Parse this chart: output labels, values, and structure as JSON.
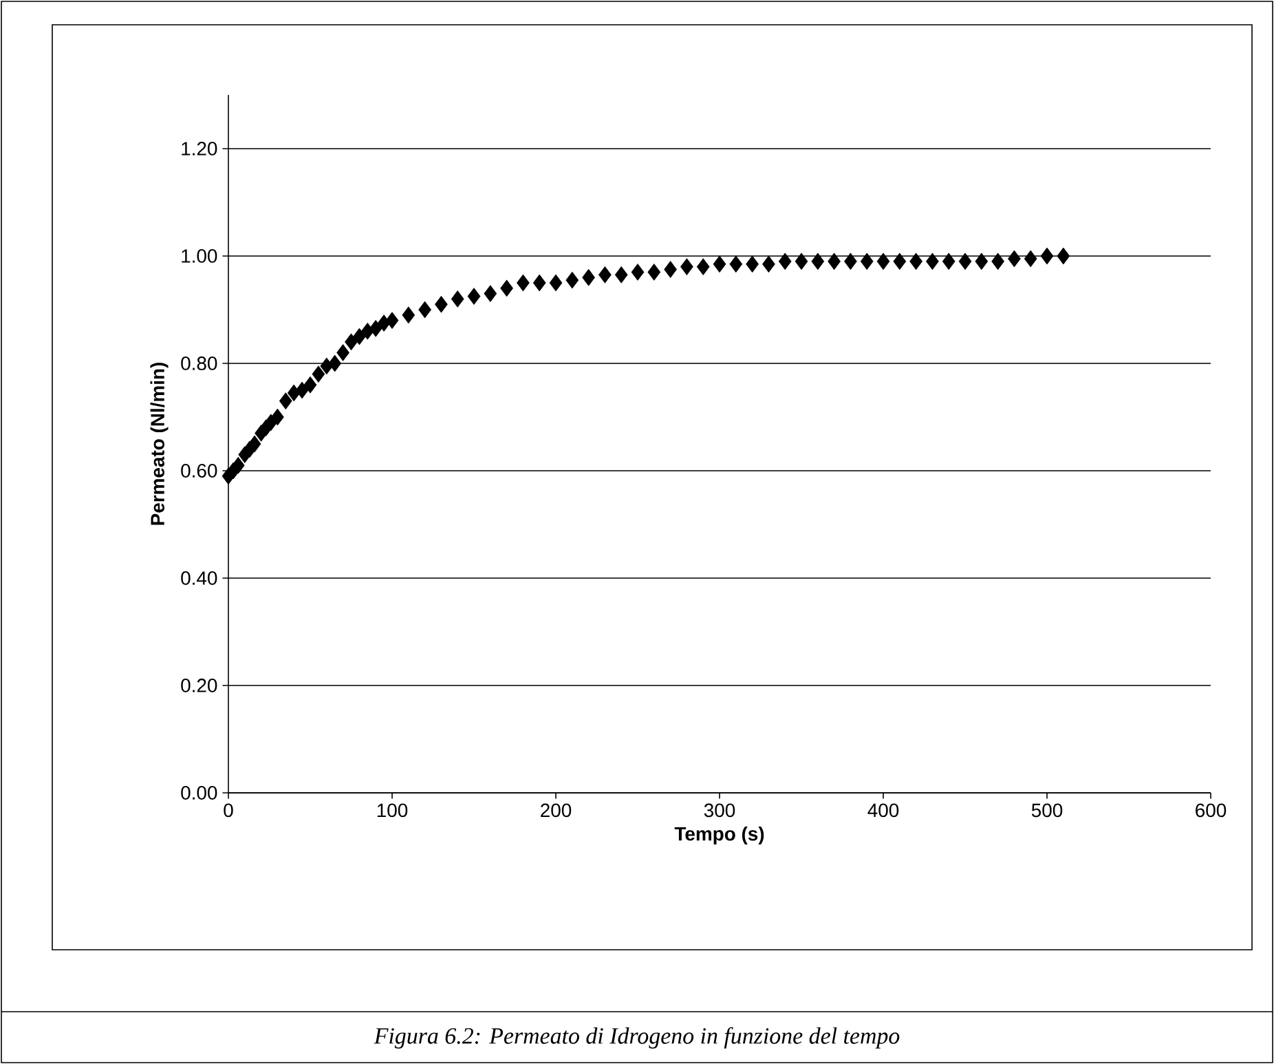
{
  "chart_data": {
    "type": "scatter",
    "xlabel": "Tempo (s)",
    "ylabel": "Permeato (Nl/min)",
    "annotations": [
      "Figura 6.2: Permeato di Idrogeno in funzione del tempo"
    ],
    "x": [
      0,
      3,
      6,
      10,
      13,
      16,
      20,
      23,
      26,
      30,
      35,
      40,
      45,
      50,
      55,
      60,
      65,
      70,
      75,
      80,
      85,
      90,
      95,
      100,
      110,
      120,
      130,
      140,
      150,
      160,
      170,
      180,
      190,
      200,
      210,
      220,
      230,
      240,
      250,
      260,
      270,
      280,
      290,
      300,
      310,
      320,
      330,
      340,
      350,
      360,
      370,
      380,
      390,
      400,
      410,
      420,
      430,
      440,
      450,
      460,
      470,
      480,
      490,
      500,
      510
    ],
    "series": [
      {
        "color": "#000000",
        "values": [
          0.59,
          0.6,
          0.61,
          0.63,
          0.64,
          0.65,
          0.67,
          0.68,
          0.69,
          0.7,
          0.73,
          0.745,
          0.75,
          0.76,
          0.78,
          0.795,
          0.8,
          0.82,
          0.84,
          0.85,
          0.86,
          0.865,
          0.875,
          0.88,
          0.89,
          0.9,
          0.91,
          0.92,
          0.925,
          0.93,
          0.94,
          0.95,
          0.95,
          0.95,
          0.955,
          0.96,
          0.965,
          0.965,
          0.97,
          0.97,
          0.975,
          0.98,
          0.98,
          0.985,
          0.985,
          0.985,
          0.985,
          0.99,
          0.99,
          0.99,
          0.99,
          0.99,
          0.99,
          0.99,
          0.99,
          0.99,
          0.99,
          0.99,
          0.99,
          0.99,
          0.99,
          0.995,
          0.995,
          1.0,
          1.0
        ]
      }
    ],
    "xlim": [
      0,
      600
    ],
    "xticks": [
      0,
      100,
      200,
      300,
      400,
      500,
      600
    ],
    "ylim": [
      0,
      1.3
    ],
    "yticks": [
      {
        "value": 0,
        "label": "0.00"
      },
      {
        "value": 0.2,
        "label": "0.20"
      },
      {
        "value": 0.4,
        "label": "0.40"
      },
      {
        "value": 0.6,
        "label": "0.60"
      },
      {
        "value": 0.8,
        "label": "0.80"
      },
      {
        "value": 1.0,
        "label": "1.00"
      },
      {
        "value": 1.2,
        "label": "1.20"
      }
    ],
    "grid": "y",
    "marker": "diamond"
  }
}
